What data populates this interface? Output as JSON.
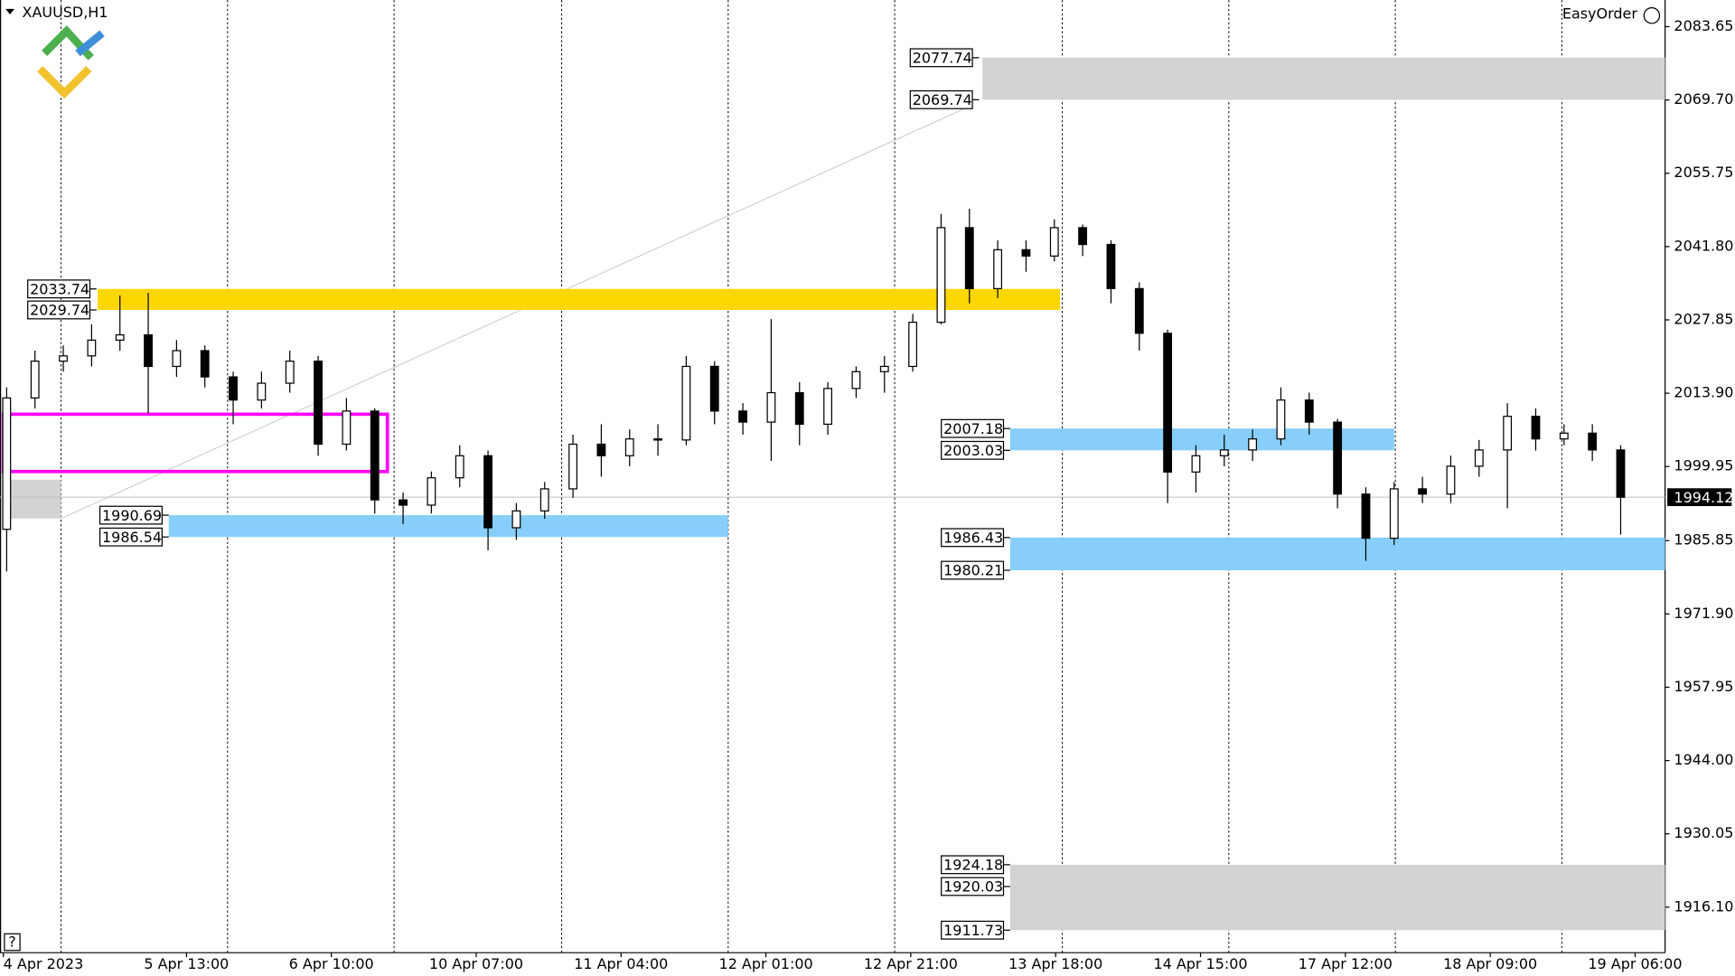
{
  "chart_data": {
    "type": "candlestick",
    "title": "XAUUSD,H1",
    "toolbar_label": "EasyOrder",
    "help_button": "?",
    "ylim": [
      1907.44,
      2088.72
    ],
    "yticks": [
      2083.65,
      {
        "value": 2069.7,
        "label": "2069.70"
      },
      2055.75,
      {
        "value": 2041.8,
        "label": "2041.80"
      },
      2027.85,
      {
        "value": 2013.9,
        "label": "2013.90"
      },
      1999.95,
      1985.85,
      {
        "value": 1971.9,
        "label": "1971.90"
      },
      1957.95,
      {
        "value": 1944,
        "label": "1944.00"
      },
      1930.05,
      {
        "value": 1916.1,
        "label": "1916.10"
      }
    ],
    "x_labels": [
      "4 Apr 2023",
      "5 Apr 13:00",
      "6 Apr 10:00",
      "10 Apr 07:00",
      "11 Apr 04:00",
      "12 Apr 01:00",
      "12 Apr 21:00",
      "13 Apr 18:00",
      "14 Apr 15:00",
      "17 Apr 12:00",
      "18 Apr 09:00",
      "19 Apr 06:00"
    ],
    "last_price": 1994.12,
    "open": [
      1988,
      2013,
      2020,
      2021,
      2024,
      2025,
      2019,
      2022,
      2017,
      2012.6,
      2015.8,
      2020,
      2004.2,
      2010.5,
      1993.6,
      1992.6,
      1997.8,
      2002,
      1988.3,
      1991.5,
      1995.7,
      2004.2,
      2002,
      2005.2,
      2005,
      2019,
      2010.5,
      2008.4,
      2014,
      2008,
      2014.8,
      2018,
      2019,
      2027.4,
      2045.4,
      2033.8,
      2041.2,
      2040,
      2045.4,
      2042.2,
      2033.8,
      2025.3,
      1998.9,
      2002,
      2003.1,
      2005.2,
      2012.6,
      2008.4,
      1994.7,
      1986.3,
      1995.7,
      1994.7,
      2000,
      2003.1,
      2009.5,
      2005.2,
      2006.3,
      2003.1
    ],
    "high": [
      2015,
      2022,
      2023,
      2027,
      2032.5,
      2033,
      2024,
      2023,
      2018,
      2018,
      2022,
      2021,
      2013,
      2011,
      1995,
      1999,
      2004,
      2003,
      1993,
      1997,
      2006,
      2008,
      2007,
      2008,
      2021,
      2020,
      2012,
      2028,
      2016,
      2016,
      2019,
      2021,
      2029,
      2048,
      2049,
      2043,
      2043,
      2047,
      2046,
      2043,
      2035,
      2026,
      2004,
      2006,
      2007,
      2015,
      2014,
      2009,
      1996,
      1997,
      1998,
      2002,
      2005,
      2012,
      2011,
      2008,
      2008,
      2004
    ],
    "low": [
      1980,
      2011,
      2018,
      2019,
      2022,
      2010,
      2017,
      2015,
      2008,
      2011,
      2014,
      2002,
      2003,
      1991,
      1989,
      1991,
      1996,
      1984,
      1986,
      1990,
      1994,
      1998,
      2000,
      2002,
      2004,
      2008,
      2006,
      2001,
      2004,
      2006,
      2013,
      2014,
      2018,
      2027,
      2031,
      2032,
      2037,
      2039,
      2040,
      2031,
      2022,
      1993,
      1995,
      2000,
      2001,
      2004,
      2006,
      1992,
      1982,
      1985,
      1993,
      1993,
      1998,
      1992,
      2003,
      2004,
      2001,
      1987
    ],
    "close": [
      2013,
      2020,
      2021,
      2024,
      2025,
      2019,
      2022,
      2017,
      2012.6,
      2015.8,
      2020,
      2004.2,
      2010.5,
      1993.6,
      1992.6,
      1997.8,
      2002,
      1988.3,
      1991.5,
      1995.7,
      2004.2,
      2002,
      2005.2,
      2005,
      2019,
      2010.5,
      2008.4,
      2014,
      2008,
      2014.8,
      2018,
      2019,
      2027.4,
      2045.4,
      2033.8,
      2041.2,
      2040,
      2045.4,
      2042.2,
      2033.8,
      2025.3,
      1998.9,
      2002,
      2003.1,
      2005.2,
      2012.6,
      2008.4,
      1994.7,
      1986.3,
      1995.7,
      1994.7,
      2000,
      2003.1,
      2009.5,
      2005.2,
      2006.3,
      2003.1,
      1994.1
    ],
    "zones": [
      {
        "levels": [
          2077.74,
          2069.74
        ],
        "color": "#d3d3d3"
      },
      {
        "levels": [
          2033.74,
          2029.74
        ],
        "color": "#ffd700"
      },
      {
        "levels": [
          1990.69,
          1986.54
        ],
        "color": "#87cefa"
      },
      {
        "levels": [
          2007.18,
          2003.03
        ],
        "color": "#87cefa"
      },
      {
        "levels": [
          1986.43,
          1980.21
        ],
        "color": "#87cefa"
      },
      {
        "levels": [
          1924.18,
          1920.03,
          1911.73
        ],
        "color": "#d3d3d3"
      }
    ],
    "box": {
      "levels": [
        2009.9,
        1999.0
      ],
      "color": "#ff00ff"
    }
  }
}
